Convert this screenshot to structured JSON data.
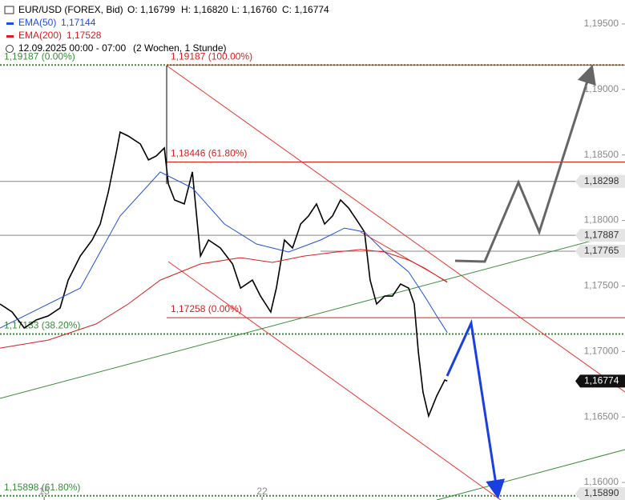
{
  "chart_data": {
    "type": "line",
    "title": "EUR/USD (FOREX, Bid)",
    "ohlc": [
      "O: 1,16799",
      "H: 1,16820",
      "L: 1,16760",
      "C: 1,16774"
    ],
    "period": "12.09.2025 00:00 - 07:00",
    "period_note": "(2 Wochen, 1 Stunde)",
    "xlim": [
      13.58,
      33.66
    ],
    "xticks": [
      15,
      22
    ],
    "ylim": [
      1.15866,
      1.19683
    ],
    "yticks": [
      {
        "value": 1.16,
        "label": "1,16000"
      },
      {
        "value": 1.165,
        "label": "1,16500"
      },
      {
        "value": 1.17,
        "label": "1,17000"
      },
      {
        "value": 1.175,
        "label": "1,17500"
      },
      {
        "value": 1.18,
        "label": "1,18000"
      },
      {
        "value": 1.185,
        "label": "1,18500"
      },
      {
        "value": 1.19,
        "label": "1,19000"
      },
      {
        "value": 1.195,
        "label": "1,19500"
      }
    ],
    "series": [
      {
        "name": "EUR/USD (FOREX, Bid)",
        "color": "#000000",
        "x": [
          13.58,
          13.97,
          14.36,
          14.74,
          15.13,
          15.51,
          15.77,
          16.16,
          16.54,
          16.8,
          17.06,
          17.32,
          17.44,
          17.7,
          18.09,
          18.35,
          18.6,
          18.86,
          18.99,
          19.19,
          19.5,
          19.76,
          20.02,
          20.28,
          20.66,
          21.05,
          21.31,
          21.69,
          21.95,
          22.28,
          22.46,
          22.72,
          22.98,
          23.24,
          23.49,
          23.75,
          24.01,
          24.26,
          24.52,
          24.78,
          25.04,
          25.29,
          25.47,
          25.68,
          25.94,
          26.19,
          26.45,
          26.71,
          26.89,
          27.02,
          27.17,
          27.35,
          27.61,
          27.87,
          27.95
        ],
        "values": [
          1.17362,
          1.17301,
          1.17179,
          1.1724,
          1.17271,
          1.17332,
          1.17545,
          1.17729,
          1.17851,
          1.17973,
          1.18217,
          1.18523,
          1.18675,
          1.18645,
          1.18584,
          1.18462,
          1.18492,
          1.18553,
          1.18278,
          1.18156,
          1.18126,
          1.1837,
          1.17729,
          1.17851,
          1.1779,
          1.17668,
          1.17484,
          1.17545,
          1.17423,
          1.17301,
          1.17484,
          1.17851,
          1.1779,
          1.17973,
          1.18034,
          1.18126,
          1.17973,
          1.18034,
          1.18156,
          1.18095,
          1.18003,
          1.17912,
          1.17545,
          1.17362,
          1.17423,
          1.17423,
          1.17515,
          1.17484,
          1.17362,
          1.16996,
          1.1669,
          1.16507,
          1.1666,
          1.16782,
          1.16774
        ]
      },
      {
        "name": "EMA(50)",
        "legend_value": "1,17144",
        "color": "#1f4fe0",
        "x": [
          13.58,
          16.16,
          17.44,
          18.73,
          19.76,
          20.79,
          21.82,
          22.85,
          23.88,
          24.65,
          25.29,
          25.94,
          26.71,
          27.22,
          27.61,
          27.95
        ],
        "values": [
          1.17179,
          1.17484,
          1.18034,
          1.1837,
          1.18248,
          1.17973,
          1.1782,
          1.17759,
          1.17851,
          1.17942,
          1.17912,
          1.17759,
          1.17607,
          1.17423,
          1.17271,
          1.17144
        ]
      },
      {
        "name": "EMA(200)",
        "legend_value": "1,17528",
        "color": "#d81e1e",
        "x": [
          13.58,
          15.13,
          16.67,
          17.7,
          18.73,
          20.02,
          21.31,
          22.33,
          23.36,
          24.39,
          25.17,
          25.94,
          26.71,
          27.22,
          27.95
        ],
        "values": [
          1.17026,
          1.17087,
          1.1721,
          1.17362,
          1.17545,
          1.17668,
          1.17716,
          1.1768,
          1.17729,
          1.17759,
          1.17778,
          1.17759,
          1.17698,
          1.17637,
          1.17528
        ]
      }
    ],
    "levels": [
      {
        "value": 1.19187,
        "label": "1,19187 (0.00%)",
        "color": "#3a8a3a",
        "style": "dotted",
        "from": "left",
        "anchor": "left"
      },
      {
        "value": 1.19187,
        "label": "1,19187 (100.00%)",
        "color": "#d81e1e",
        "style": "solid",
        "from": "pivot",
        "anchor": "pivot"
      },
      {
        "value": 1.18446,
        "label": "1,18446 (61.80%)",
        "color": "#d81e1e",
        "style": "solid",
        "from": "pivot",
        "anchor": "pivot"
      },
      {
        "value": 1.17258,
        "label": "1,17258 (0.00%)",
        "color": "#d81e1e",
        "style": "solid",
        "from": "pivot",
        "anchor": "pivot"
      },
      {
        "value": 1.17133,
        "label": "1,17133 (38.20%)",
        "color": "#3a8a3a",
        "style": "dotted",
        "from": "left",
        "anchor": "left"
      },
      {
        "value": 1.15898,
        "label": "1,15898 (61.80%)",
        "color": "#3a8a3a",
        "style": "dotted",
        "from": "left",
        "anchor": "left"
      }
    ],
    "price_tags": [
      {
        "value": 1.18298,
        "label": "1,18298",
        "color": "#e4e4e4",
        "text_color": "#333333",
        "line": "full"
      },
      {
        "value": 1.17887,
        "label": "1,17887",
        "color": "#e4e4e4",
        "text_color": "#333333",
        "line": "full"
      },
      {
        "value": 1.17765,
        "label": "1,17765",
        "color": "#e4e4e4",
        "text_color": "#333333",
        "line": "mid"
      },
      {
        "value": 1.16774,
        "label": "1,16774",
        "color": "#111111",
        "text_color": "#ffffff",
        "line": "none"
      },
      {
        "value": 1.1589,
        "label": "1,15890",
        "color": "#e4e4e4",
        "text_color": "#333333",
        "line": "none"
      }
    ]
  }
}
